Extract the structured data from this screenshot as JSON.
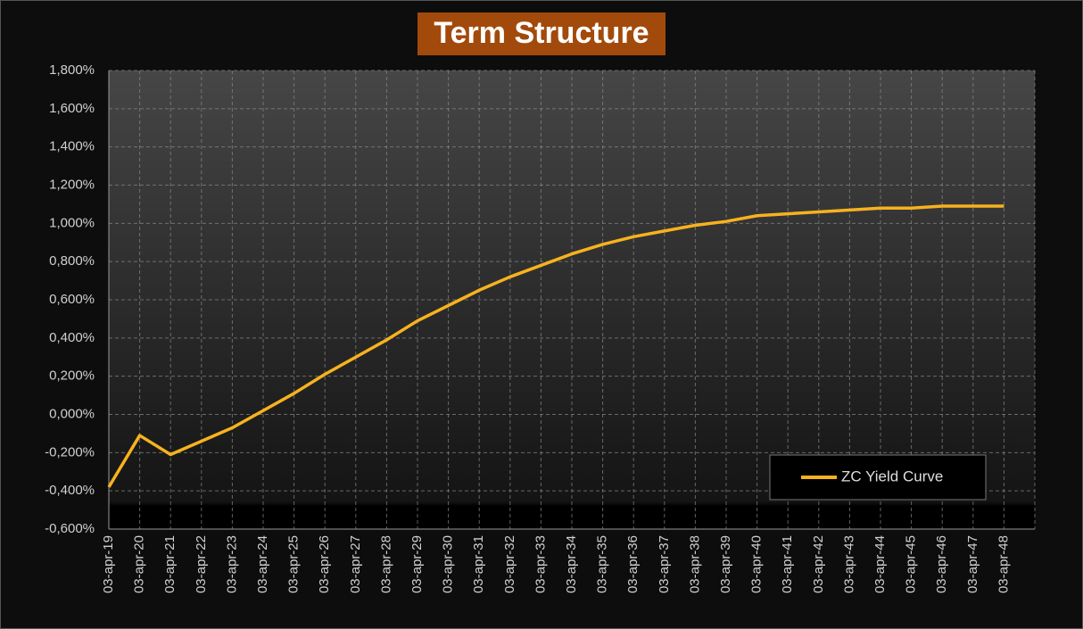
{
  "chart_data": {
    "type": "line",
    "title": "Term Structure",
    "categories": [
      "03-apr-19",
      "03-apr-20",
      "03-apr-21",
      "03-apr-22",
      "03-apr-23",
      "03-apr-24",
      "03-apr-25",
      "03-apr-26",
      "03-apr-27",
      "03-apr-28",
      "03-apr-29",
      "03-apr-30",
      "03-apr-31",
      "03-apr-32",
      "03-apr-33",
      "03-apr-34",
      "03-apr-35",
      "03-apr-36",
      "03-apr-37",
      "03-apr-38",
      "03-apr-39",
      "03-apr-40",
      "03-apr-41",
      "03-apr-42",
      "03-apr-43",
      "03-apr-44",
      "03-apr-45",
      "03-apr-46",
      "03-apr-47",
      "03-apr-48"
    ],
    "series": [
      {
        "name": "ZC Yield Curve",
        "color": "#f7b21e",
        "values": [
          -0.38,
          -0.11,
          -0.21,
          -0.14,
          -0.07,
          0.02,
          0.11,
          0.21,
          0.3,
          0.39,
          0.49,
          0.57,
          0.65,
          0.72,
          0.78,
          0.84,
          0.89,
          0.93,
          0.96,
          0.99,
          1.01,
          1.04,
          1.05,
          1.06,
          1.07,
          1.08,
          1.08,
          1.09,
          1.09,
          1.09
        ]
      }
    ],
    "ylim": [
      -0.6,
      1.8
    ],
    "yticks": [
      {
        "value": -0.6,
        "label": "-0,600%"
      },
      {
        "value": -0.4,
        "label": "-0,400%"
      },
      {
        "value": -0.2,
        "label": "-0,200%"
      },
      {
        "value": 0,
        "label": "0,000%"
      },
      {
        "value": 0.2,
        "label": "0,200%"
      },
      {
        "value": 0.4,
        "label": "0,400%"
      },
      {
        "value": 0.6,
        "label": "0,600%"
      },
      {
        "value": 0.8,
        "label": "0,800%"
      },
      {
        "value": 1.0,
        "label": "1,000%"
      },
      {
        "value": 1.2,
        "label": "1,200%"
      },
      {
        "value": 1.4,
        "label": "1,400%"
      },
      {
        "value": 1.6,
        "label": "1,600%"
      },
      {
        "value": 1.8,
        "label": "1,800%"
      }
    ],
    "grid": true,
    "legend": "lower right"
  }
}
